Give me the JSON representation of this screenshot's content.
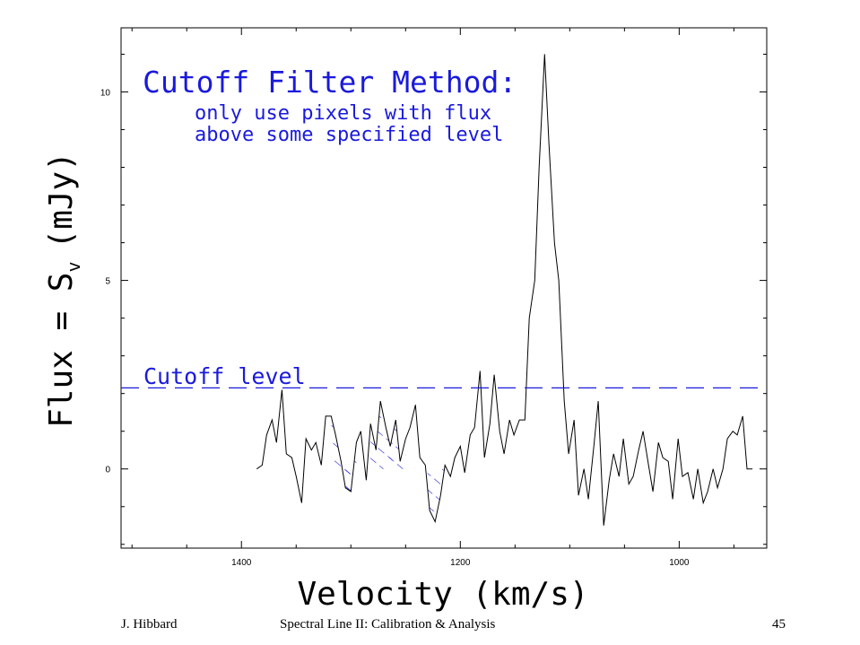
{
  "chart_data": {
    "type": "line",
    "xlabel": "Velocity (km/s)",
    "ylabel_main": "Flux = S",
    "ylabel_sub": "v",
    "ylabel_unit": "(mJy)",
    "xlim": [
      1510,
      920
    ],
    "ylim": [
      -2.1,
      11.7
    ],
    "xticks": [
      1400,
      1200,
      1000
    ],
    "yticks": [
      0,
      5,
      10
    ],
    "x_minor_step": 50,
    "y_minor_step": 1,
    "cutoff_level": 2.15,
    "cutoff_label": "Cutoff level",
    "annotation_title": "Cutoff Filter Method:",
    "annotation_lines": [
      "only use pixels with flux",
      "above some specified level"
    ],
    "colors": {
      "spectrum": "#000000",
      "annotation": "#1a1adc",
      "hatch": "#1a1adc"
    },
    "series": [
      {
        "x": [
          1386,
          1381,
          1377,
          1372,
          1368,
          1363,
          1359,
          1354,
          1350,
          1345,
          1341,
          1336,
          1332,
          1327,
          1323,
          1318,
          1314,
          1309,
          1305,
          1300,
          1295,
          1291,
          1286,
          1282,
          1277,
          1273,
          1268,
          1264,
          1259,
          1255,
          1250,
          1246,
          1241,
          1237,
          1232,
          1228,
          1223,
          1218,
          1214,
          1209,
          1205,
          1200,
          1196,
          1191,
          1187,
          1182,
          1178,
          1173,
          1169,
          1164,
          1160,
          1155,
          1151,
          1146,
          1141,
          1137,
          1132,
          1128,
          1123,
          1119,
          1114,
          1110,
          1105,
          1101,
          1096,
          1092,
          1087,
          1083,
          1078,
          1074,
          1069,
          1064,
          1060,
          1055,
          1051,
          1046,
          1042,
          1037,
          1033,
          1028,
          1024,
          1019,
          1015,
          1010,
          1006,
          1001,
          997,
          992,
          987,
          983,
          978,
          974,
          969,
          965,
          960,
          956,
          951,
          947,
          942,
          938,
          933
        ],
        "values": [
          0.0,
          0.1,
          0.9,
          1.3,
          0.7,
          2.1,
          0.4,
          0.3,
          -0.2,
          -0.9,
          0.8,
          0.5,
          0.7,
          0.1,
          1.4,
          1.4,
          0.9,
          0.2,
          -0.5,
          -0.6,
          0.7,
          1.0,
          -0.3,
          1.2,
          0.5,
          1.8,
          1.1,
          0.6,
          1.3,
          0.2,
          0.8,
          1.1,
          1.7,
          0.3,
          0.1,
          -1.1,
          -1.4,
          -0.7,
          0.1,
          -0.2,
          0.3,
          0.6,
          -0.1,
          0.9,
          1.1,
          2.6,
          0.3,
          1.2,
          2.5,
          1.0,
          0.4,
          1.3,
          0.9,
          1.3,
          1.3,
          4.0,
          5.0,
          8.0,
          11.0,
          8.6,
          6.0,
          5.0,
          1.8,
          0.4,
          1.3,
          -0.7,
          0.0,
          -0.8,
          0.6,
          1.8,
          -1.5,
          -0.3,
          0.4,
          -0.2,
          0.8,
          -0.4,
          -0.2,
          0.5,
          1.0,
          0.1,
          -0.6,
          0.7,
          0.3,
          0.2,
          -0.8,
          0.8,
          -0.2,
          -0.1,
          -0.8,
          0.0,
          -0.9,
          -0.6,
          0.0,
          -0.5,
          0.0,
          0.8,
          1.0,
          0.9,
          1.4,
          0.0,
          0.0
        ]
      }
    ],
    "hatched_regions": [
      [
        1318,
        1300
      ],
      [
        1305,
        1295
      ],
      [
        1282,
        1262
      ],
      [
        1265,
        1250
      ],
      [
        1230,
        1215
      ]
    ]
  },
  "footer": {
    "author": "J. Hibbard",
    "title": "Spectral Line II: Calibration & Analysis",
    "page": "45"
  }
}
